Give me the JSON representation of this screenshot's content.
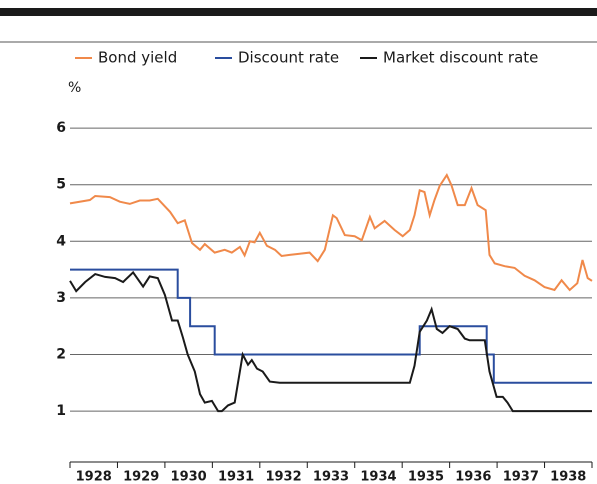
{
  "chart_data": {
    "type": "line",
    "ylabel": "%",
    "ylim": [
      0.1,
      6.5
    ],
    "yticks": [
      1,
      2,
      3,
      4,
      5,
      6
    ],
    "grid": true,
    "xlim": [
      1928,
      1939
    ],
    "xticks": [
      1928,
      1929,
      1930,
      1931,
      1932,
      1933,
      1934,
      1935,
      1936,
      1937,
      1938,
      1939
    ],
    "x_labels": [
      "1928",
      "1929",
      "1930",
      "1931",
      "1932",
      "1933",
      "1934",
      "1935",
      "1936",
      "1937",
      "1938"
    ],
    "legend": "top",
    "series": [
      {
        "name": "Bond yield",
        "color": "#f0894a",
        "x": [
          1928.0,
          1928.42,
          1928.53,
          1928.84,
          1929.05,
          1929.26,
          1929.47,
          1929.68,
          1929.85,
          1930.11,
          1930.27,
          1930.42,
          1930.57,
          1930.74,
          1930.84,
          1931.05,
          1931.26,
          1931.41,
          1931.58,
          1931.68,
          1931.79,
          1931.89,
          1932.0,
          1932.15,
          1932.32,
          1932.46,
          1932.63,
          1932.84,
          1933.05,
          1933.22,
          1933.37,
          1933.54,
          1933.62,
          1933.79,
          1934.0,
          1934.15,
          1934.32,
          1934.42,
          1934.63,
          1934.84,
          1935.01,
          1935.16,
          1935.26,
          1935.37,
          1935.47,
          1935.58,
          1935.68,
          1935.79,
          1935.94,
          1936.04,
          1936.17,
          1936.32,
          1936.46,
          1936.59,
          1936.76,
          1936.84,
          1936.95,
          1937.16,
          1937.37,
          1937.58,
          1937.79,
          1938.0,
          1938.21,
          1938.36,
          1938.53,
          1938.69,
          1938.8,
          1938.91,
          1939.0
        ],
        "values": [
          4.67,
          4.73,
          4.8,
          4.78,
          4.7,
          4.66,
          4.72,
          4.72,
          4.75,
          4.52,
          4.32,
          4.37,
          3.97,
          3.85,
          3.95,
          3.8,
          3.85,
          3.8,
          3.9,
          3.75,
          4.0,
          3.98,
          4.15,
          3.92,
          3.85,
          3.74,
          3.76,
          3.78,
          3.8,
          3.65,
          3.85,
          4.46,
          4.41,
          4.11,
          4.09,
          4.02,
          4.43,
          4.23,
          4.36,
          4.2,
          4.09,
          4.2,
          4.46,
          4.9,
          4.87,
          4.46,
          4.73,
          4.98,
          5.17,
          4.99,
          4.64,
          4.64,
          4.94,
          4.64,
          4.55,
          3.76,
          3.61,
          3.56,
          3.53,
          3.39,
          3.31,
          3.19,
          3.14,
          3.31,
          3.14,
          3.26,
          3.67,
          3.35,
          3.3
        ]
      },
      {
        "name": "Discount rate",
        "color": "#2a4d9e",
        "x": [
          1928.0,
          1930.27,
          1930.27,
          1930.53,
          1930.53,
          1931.05,
          1931.05,
          1935.37,
          1935.37,
          1936.78,
          1936.78,
          1936.93,
          1936.93,
          1939.0
        ],
        "values": [
          3.5,
          3.5,
          3.0,
          3.0,
          2.5,
          2.5,
          2.0,
          2.0,
          2.5,
          2.5,
          2.0,
          2.0,
          1.5,
          1.5
        ]
      },
      {
        "name": "Market discount rate",
        "color": "#1a1a1a",
        "x": [
          1928.0,
          1928.13,
          1928.32,
          1928.53,
          1928.74,
          1928.95,
          1929.12,
          1929.33,
          1929.54,
          1929.68,
          1929.85,
          1930.0,
          1930.15,
          1930.27,
          1930.38,
          1930.48,
          1930.63,
          1930.74,
          1930.84,
          1930.99,
          1931.12,
          1931.2,
          1931.33,
          1931.47,
          1931.64,
          1931.75,
          1931.83,
          1931.94,
          1932.06,
          1932.21,
          1932.42,
          1935.16,
          1935.26,
          1935.37,
          1935.52,
          1935.62,
          1935.73,
          1935.85,
          1936.0,
          1936.17,
          1936.32,
          1936.42,
          1936.74,
          1936.84,
          1936.99,
          1937.12,
          1937.22,
          1937.33,
          1939.0
        ],
        "values": [
          3.3,
          3.12,
          3.28,
          3.42,
          3.37,
          3.35,
          3.28,
          3.45,
          3.2,
          3.38,
          3.35,
          3.05,
          2.6,
          2.6,
          2.3,
          2.0,
          1.7,
          1.3,
          1.15,
          1.18,
          1.0,
          1.0,
          1.1,
          1.15,
          2.0,
          1.82,
          1.9,
          1.75,
          1.7,
          1.52,
          1.5,
          1.5,
          1.8,
          2.4,
          2.6,
          2.8,
          2.45,
          2.38,
          2.5,
          2.45,
          2.28,
          2.25,
          2.25,
          1.7,
          1.25,
          1.25,
          1.15,
          1.0,
          1.0
        ]
      }
    ]
  }
}
